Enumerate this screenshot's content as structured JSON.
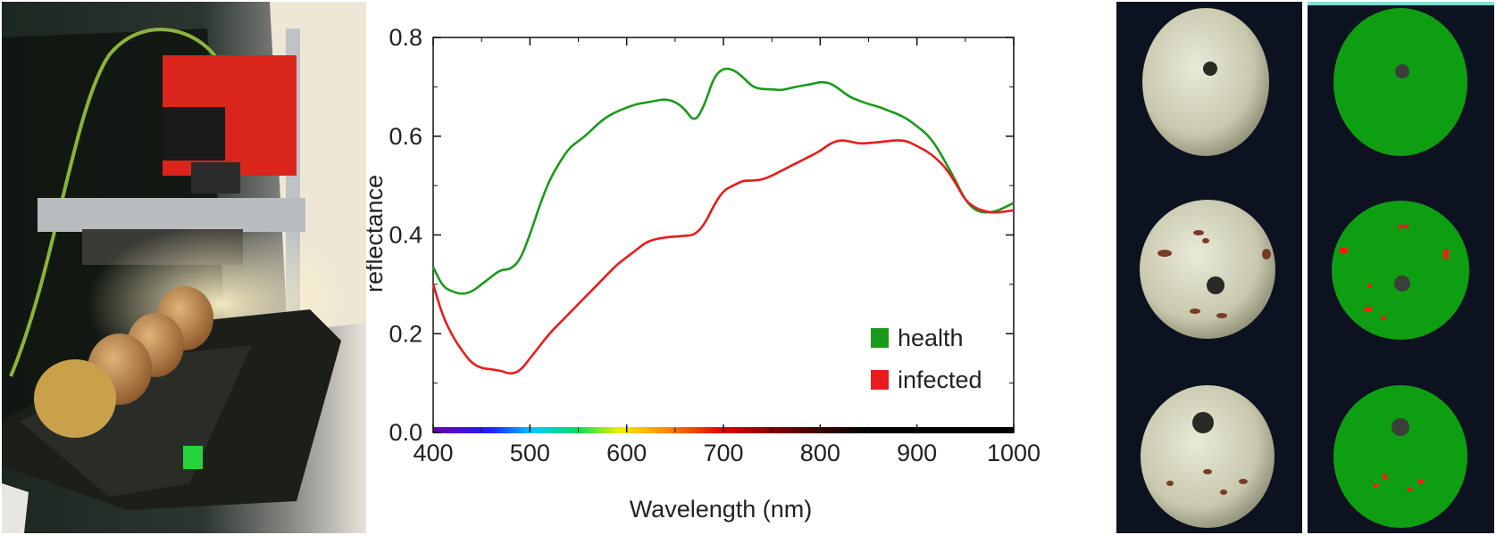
{
  "chart_data": {
    "type": "line",
    "title": "",
    "xlabel": "Wavelength (nm)",
    "ylabel": "reflectance",
    "xlim": [
      400,
      1000
    ],
    "ylim": [
      0,
      0.8
    ],
    "x_ticks": [
      400,
      500,
      600,
      700,
      800,
      900,
      1000
    ],
    "y_ticks": [
      0.0,
      0.2,
      0.4,
      0.6,
      0.8
    ],
    "y_tick_labels": [
      "0.0",
      "0.2",
      "0.4",
      "0.6",
      "0.8"
    ],
    "legend_position": "bottom-right",
    "series": [
      {
        "name": "health",
        "color": "#1a9a1a",
        "x": [
          400,
          410,
          420,
          430,
          440,
          450,
          460,
          470,
          480,
          490,
          500,
          510,
          520,
          530,
          540,
          550,
          560,
          570,
          580,
          590,
          600,
          610,
          620,
          630,
          640,
          650,
          660,
          670,
          680,
          690,
          700,
          710,
          720,
          730,
          740,
          750,
          760,
          770,
          780,
          790,
          800,
          810,
          820,
          830,
          840,
          850,
          860,
          870,
          880,
          890,
          900,
          910,
          920,
          930,
          940,
          950,
          960,
          970,
          980,
          990,
          1000
        ],
        "y": [
          0.335,
          0.295,
          0.285,
          0.28,
          0.285,
          0.3,
          0.315,
          0.33,
          0.33,
          0.35,
          0.4,
          0.46,
          0.51,
          0.545,
          0.575,
          0.59,
          0.605,
          0.625,
          0.64,
          0.65,
          0.658,
          0.665,
          0.668,
          0.672,
          0.675,
          0.67,
          0.655,
          0.628,
          0.66,
          0.72,
          0.738,
          0.735,
          0.72,
          0.7,
          0.695,
          0.695,
          0.693,
          0.698,
          0.702,
          0.705,
          0.71,
          0.708,
          0.695,
          0.68,
          0.672,
          0.665,
          0.66,
          0.652,
          0.645,
          0.635,
          0.62,
          0.605,
          0.58,
          0.545,
          0.51,
          0.47,
          0.45,
          0.445,
          0.447,
          0.455,
          0.465
        ]
      },
      {
        "name": "infected",
        "color": "#e81c1c",
        "x": [
          400,
          410,
          420,
          430,
          440,
          450,
          460,
          470,
          480,
          490,
          500,
          510,
          520,
          530,
          540,
          550,
          560,
          570,
          580,
          590,
          600,
          610,
          620,
          630,
          640,
          650,
          660,
          670,
          680,
          690,
          700,
          710,
          720,
          730,
          740,
          750,
          760,
          770,
          780,
          790,
          800,
          810,
          820,
          830,
          840,
          850,
          860,
          870,
          880,
          890,
          900,
          910,
          920,
          930,
          940,
          950,
          960,
          970,
          980,
          990,
          1000
        ],
        "y": [
          0.3,
          0.235,
          0.195,
          0.165,
          0.14,
          0.13,
          0.128,
          0.125,
          0.118,
          0.125,
          0.15,
          0.175,
          0.2,
          0.22,
          0.24,
          0.26,
          0.28,
          0.3,
          0.32,
          0.34,
          0.355,
          0.37,
          0.385,
          0.392,
          0.395,
          0.397,
          0.398,
          0.4,
          0.42,
          0.46,
          0.49,
          0.5,
          0.51,
          0.51,
          0.512,
          0.52,
          0.53,
          0.54,
          0.55,
          0.56,
          0.57,
          0.585,
          0.592,
          0.59,
          0.585,
          0.586,
          0.588,
          0.59,
          0.592,
          0.59,
          0.58,
          0.57,
          0.555,
          0.535,
          0.505,
          0.47,
          0.455,
          0.448,
          0.445,
          0.447,
          0.45
        ]
      }
    ]
  },
  "colors": {
    "health": "#1a9a1a",
    "infected": "#e81c1c",
    "mask_green": "#0e9e12",
    "lab_dark": "#1c1e1a",
    "camera_red": "#d9251c"
  },
  "icons": {
    "hyperspectral_camera": "camera-icon",
    "pears": "pear-icon"
  }
}
